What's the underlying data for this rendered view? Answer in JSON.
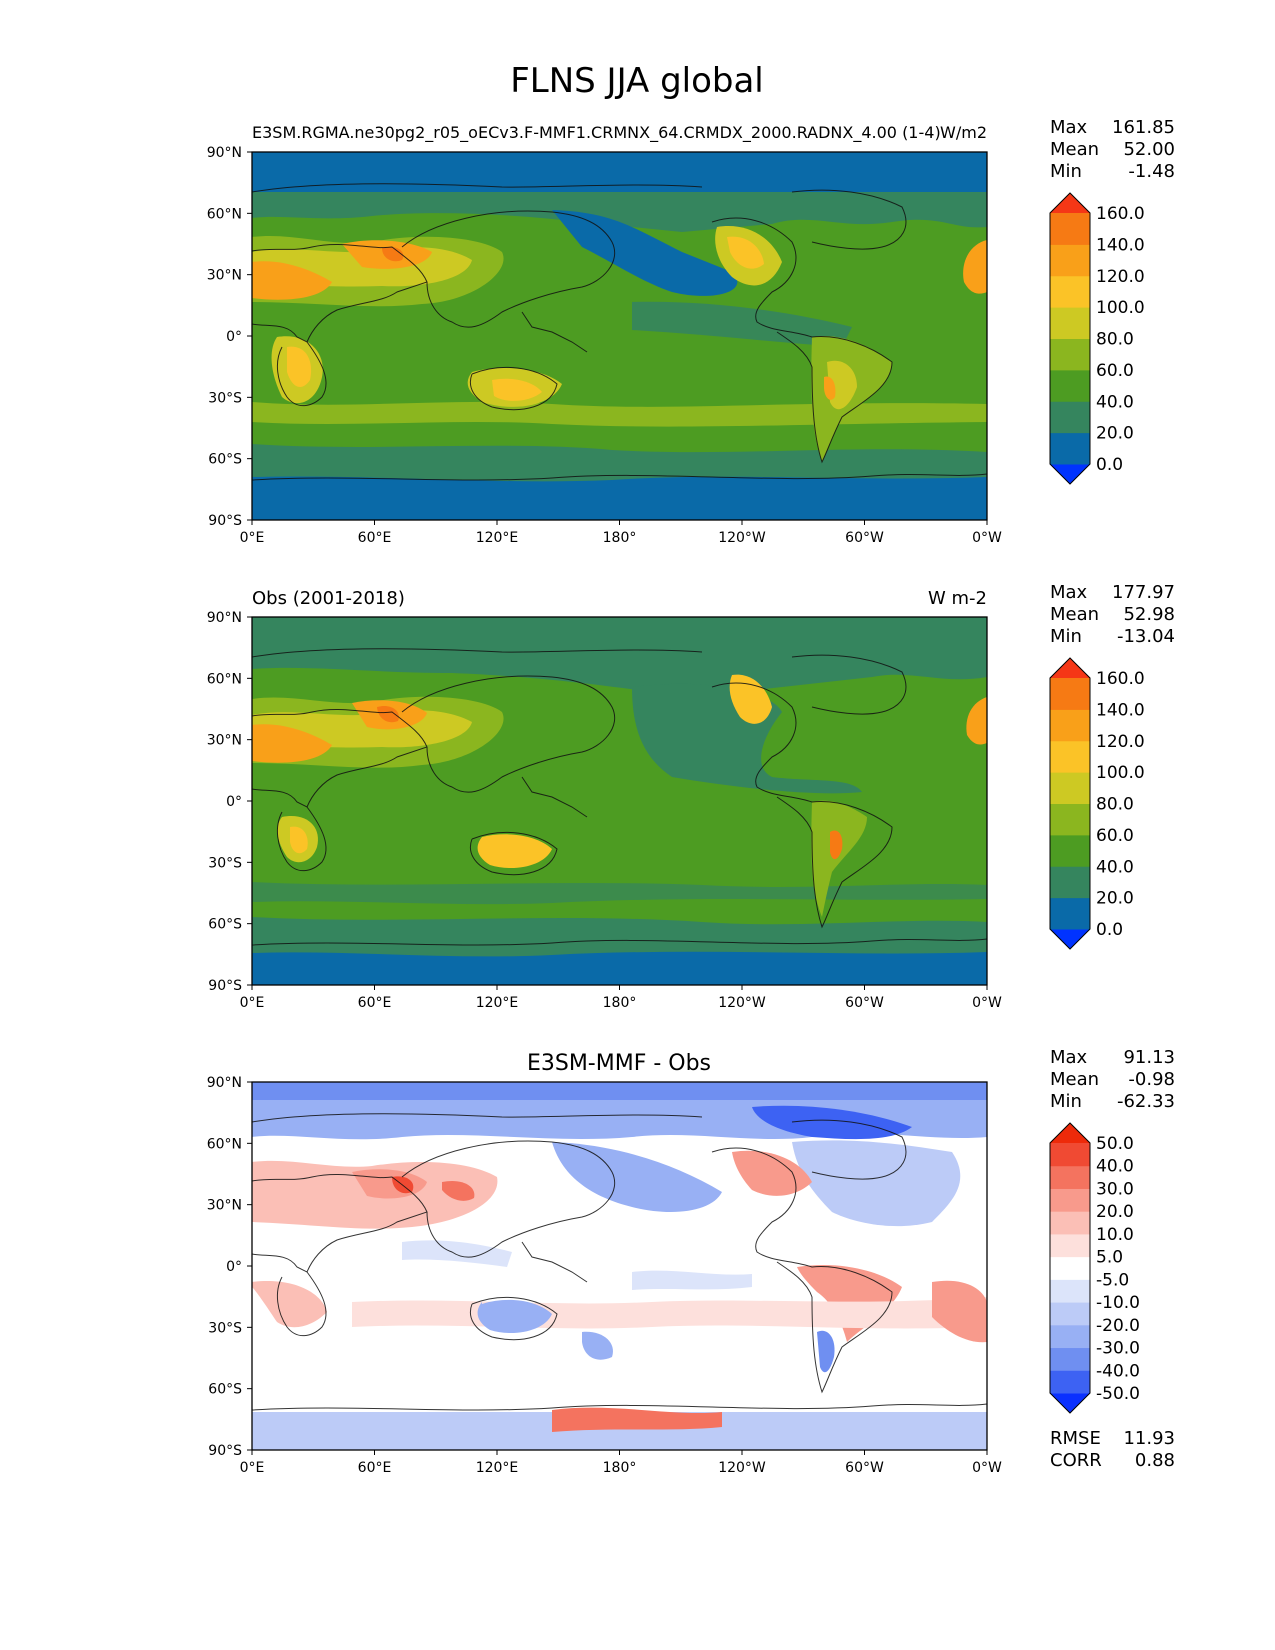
{
  "figure": {
    "title": "FLNS JJA global"
  },
  "axes": {
    "lat_ticks": [
      "90°N",
      "60°N",
      "30°N",
      "0°",
      "30°S",
      "60°S",
      "90°S"
    ],
    "lon_ticks": [
      "0°E",
      "60°E",
      "120°E",
      "180°",
      "120°W",
      "60°W",
      "0°W"
    ]
  },
  "panels": [
    {
      "title_left": "E3SM.RGMA.ne30pg2_r05_oECv3.F-MMF1.CRMNX_64.CRMDX_2000.RADNX_4.00 (1-4)",
      "title_center": "",
      "title_right": "W/m2",
      "stats": [
        {
          "label": "Max",
          "value": "161.85"
        },
        {
          "label": "Mean",
          "value": "52.00"
        },
        {
          "label": "Min",
          "value": "-1.48"
        }
      ],
      "colorbar_labels": [
        "160.0",
        "140.0",
        "120.0",
        "100.0",
        "80.0",
        "60.0",
        "40.0",
        "20.0",
        "0.0"
      ]
    },
    {
      "title_left": "Obs (2001-2018)",
      "title_center": "",
      "title_right": "W m-2",
      "stats": [
        {
          "label": "Max",
          "value": "177.97"
        },
        {
          "label": "Mean",
          "value": "52.98"
        },
        {
          "label": "Min",
          "value": "-13.04"
        }
      ],
      "colorbar_labels": [
        "160.0",
        "140.0",
        "120.0",
        "100.0",
        "80.0",
        "60.0",
        "40.0",
        "20.0",
        "0.0"
      ]
    },
    {
      "title_left": "",
      "title_center": "E3SM-MMF - Obs",
      "title_right": "",
      "stats": [
        {
          "label": "Max",
          "value": "91.13"
        },
        {
          "label": "Mean",
          "value": "-0.98"
        },
        {
          "label": "Min",
          "value": "-62.33"
        }
      ],
      "colorbar_labels": [
        "50.0",
        "40.0",
        "30.0",
        "20.0",
        "10.0",
        "5.0",
        "-5.0",
        "-10.0",
        "-20.0",
        "-30.0",
        "-40.0",
        "-50.0"
      ],
      "extra_stats": [
        {
          "label": "RMSE",
          "value": "11.93"
        },
        {
          "label": "CORR",
          "value": "0.88"
        }
      ]
    }
  ],
  "colors": {
    "seq": [
      "#0033ff",
      "#0a6aa8",
      "#35855e",
      "#4d9c22",
      "#8bb61f",
      "#cdc923",
      "#fbc327",
      "#f9a019",
      "#f67a14",
      "#f53716"
    ],
    "div": [
      "#0a30ff",
      "#3d62f3",
      "#6f8ff1",
      "#98b0f4",
      "#bccbf7",
      "#dce4fa",
      "#ffffff",
      "#fde0dc",
      "#fbbfb6",
      "#f89a8c",
      "#f4735f",
      "#f04a33",
      "#ee2a0a"
    ]
  }
}
